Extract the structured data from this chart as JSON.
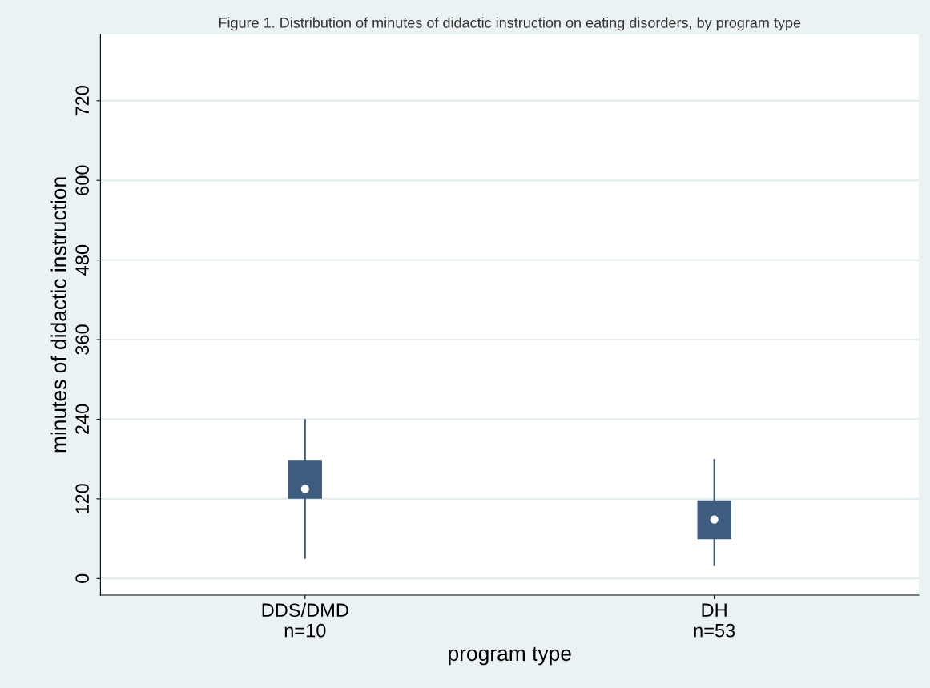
{
  "chart_data": {
    "type": "box",
    "title": "Figure 1. Distribution of minutes of didactic instruction on eating disorders, by program type",
    "xlabel": "program type",
    "ylabel": "minutes of didactic instruction",
    "categories": [
      "DDS/DMD\nn=10",
      "DH\nn=53"
    ],
    "boxes": [
      {
        "low": 31,
        "q1": 121,
        "median": 135,
        "q3": 178,
        "high": 239
      },
      {
        "low": 20,
        "q1": 60,
        "median": 89,
        "q3": 117,
        "high": 179
      }
    ],
    "color": "#3e5c7e",
    "ylim": [
      -25,
      820
    ],
    "yticks": [
      0,
      120,
      240,
      360,
      480,
      600,
      720
    ],
    "grid": "y"
  }
}
